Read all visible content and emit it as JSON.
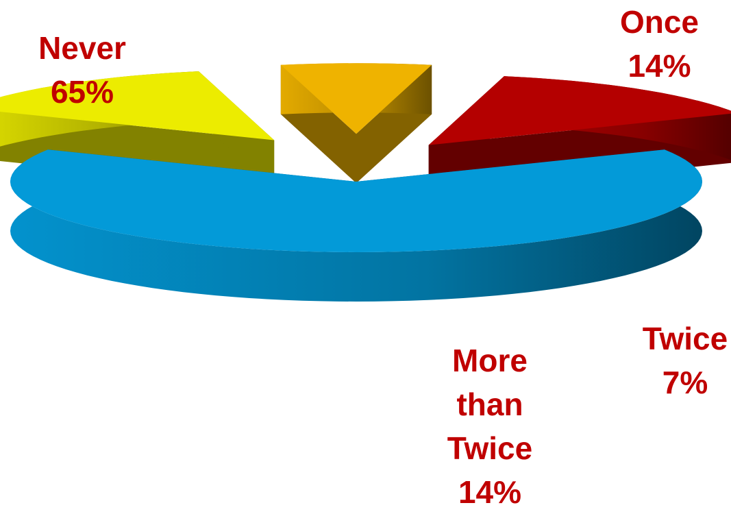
{
  "chart_data": {
    "type": "pie",
    "variant": "3d-exploded",
    "title": "",
    "slices": [
      {
        "label": "Never",
        "value": 65,
        "display": "65%",
        "color": "#039ad8"
      },
      {
        "label": "Once",
        "value": 14,
        "display": "14%",
        "color": "#ecec00"
      },
      {
        "label": "Twice",
        "value": 7,
        "display": "7%",
        "color": "#efb300"
      },
      {
        "label": "More than Twice",
        "label_lines": [
          "More",
          "than",
          "Twice"
        ],
        "value": 14,
        "display": "14%",
        "color": "#b40000"
      }
    ],
    "label_color": "#c00000",
    "legend": "none"
  }
}
